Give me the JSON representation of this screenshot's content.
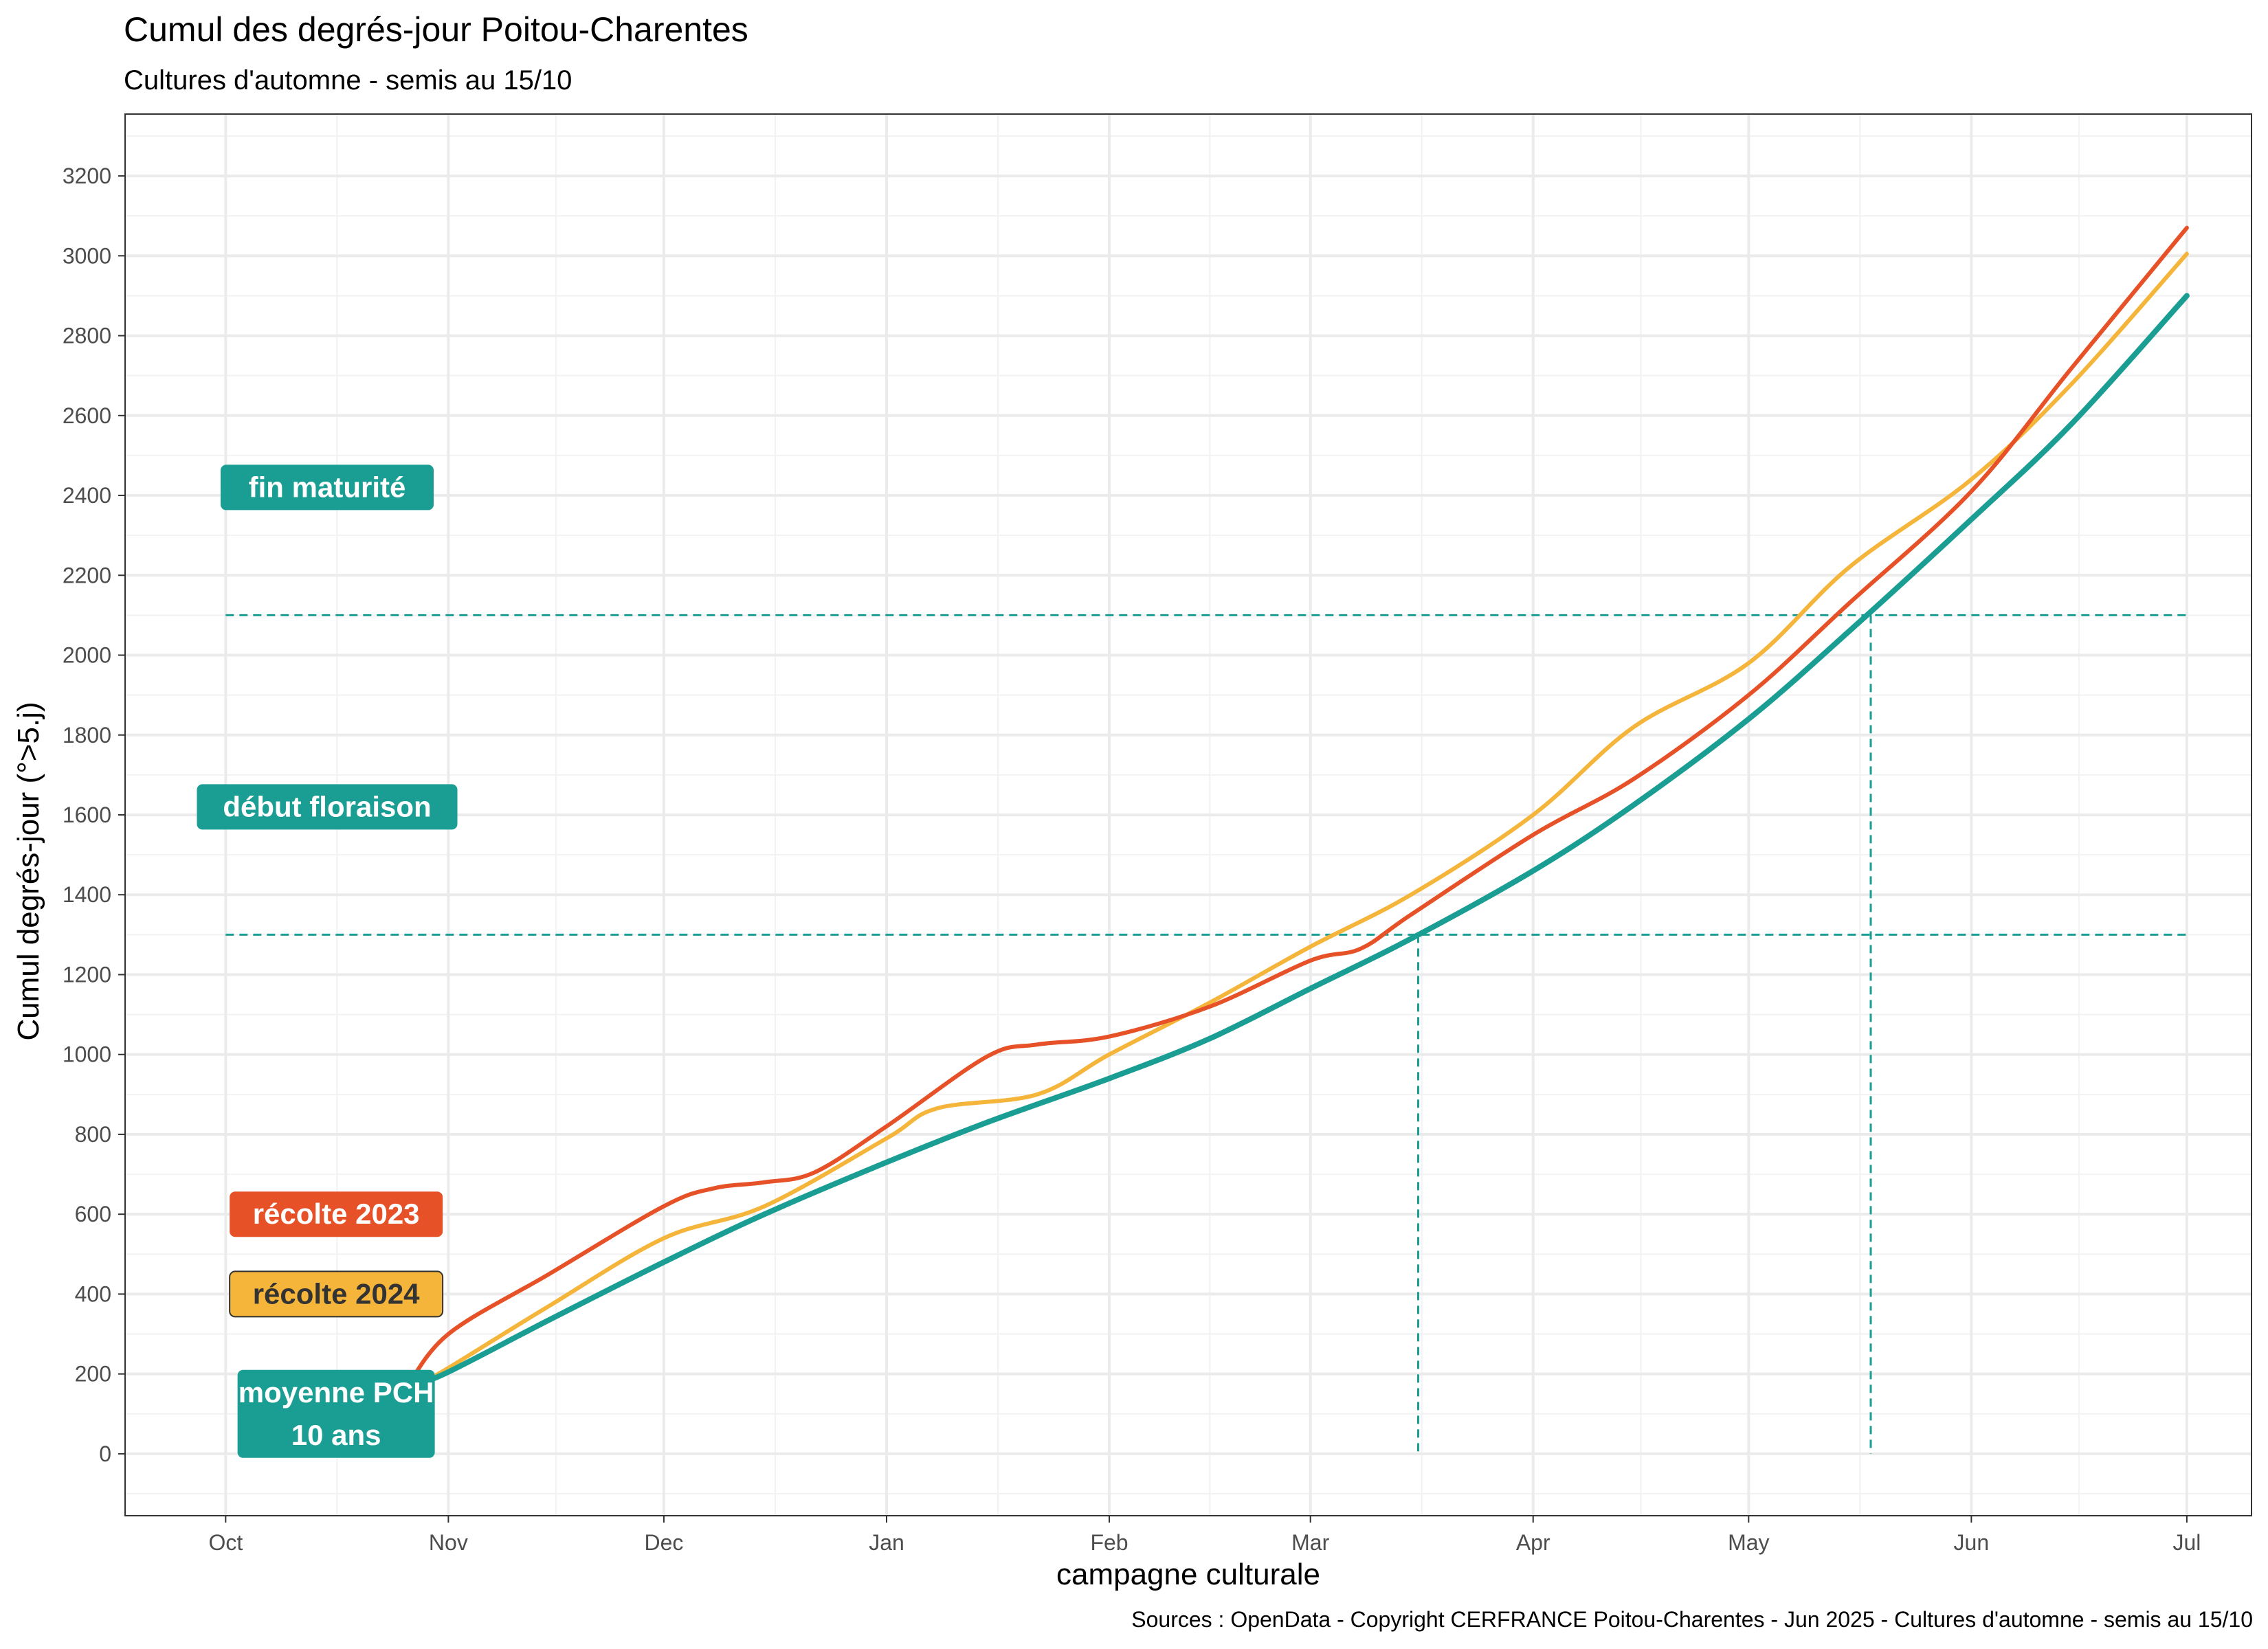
{
  "title": "Cumul des degrés-jour Poitou-Charentes",
  "subtitle": "Cultures d'automne - semis au 15/10",
  "caption": "Sources : OpenData - Copyright CERFRANCE Poitou-Charentes - Jun 2025 - Cultures d'automne - semis au 15/10",
  "colors": {
    "moyenne": "#1a9e94",
    "recolte2023": "#e65128",
    "recolte2024": "#f4b53a"
  },
  "chart_data": {
    "type": "line",
    "xlabel": "campagne culturale",
    "ylabel": "Cumul degrés-jour (°>5.j)",
    "x_ticks": [
      "Oct",
      "Nov",
      "Dec",
      "Jan",
      "Feb",
      "Mar",
      "Apr",
      "May",
      "Jun",
      "Jul"
    ],
    "y_ticks": [
      0,
      200,
      400,
      600,
      800,
      1000,
      1200,
      1400,
      1600,
      1800,
      2000,
      2200,
      2400,
      2600,
      2800,
      3000,
      3200
    ],
    "xlim": [
      "2024-09-17",
      "2025-07-10"
    ],
    "ylim": [
      -155,
      3355
    ],
    "grid": true,
    "series": [
      {
        "name": "moyenne PCH 10 ans",
        "color": "#1a9e94",
        "points": [
          [
            "2024-10-27",
            170
          ],
          [
            "2024-11-01",
            205
          ],
          [
            "2024-11-15",
            335
          ],
          [
            "2024-12-01",
            480
          ],
          [
            "2024-12-15",
            600
          ],
          [
            "2025-01-01",
            730
          ],
          [
            "2025-01-15",
            830
          ],
          [
            "2025-02-01",
            940
          ],
          [
            "2025-02-15",
            1040
          ],
          [
            "2025-03-01",
            1165
          ],
          [
            "2025-03-15",
            1290
          ],
          [
            "2025-04-01",
            1460
          ],
          [
            "2025-04-15",
            1625
          ],
          [
            "2025-05-01",
            1840
          ],
          [
            "2025-05-15",
            2060
          ],
          [
            "2025-06-01",
            2340
          ],
          [
            "2025-06-15",
            2580
          ],
          [
            "2025-07-01",
            2900
          ]
        ]
      },
      {
        "name": "récolte 2023",
        "color": "#e65128",
        "points": [
          [
            "2024-10-26",
            160
          ],
          [
            "2024-11-01",
            300
          ],
          [
            "2024-11-15",
            450
          ],
          [
            "2024-12-01",
            620
          ],
          [
            "2024-12-08",
            665
          ],
          [
            "2024-12-15",
            680
          ],
          [
            "2024-12-22",
            705
          ],
          [
            "2025-01-01",
            820
          ],
          [
            "2025-01-15",
            995
          ],
          [
            "2025-01-22",
            1025
          ],
          [
            "2025-02-01",
            1045
          ],
          [
            "2025-02-15",
            1120
          ],
          [
            "2025-03-01",
            1235
          ],
          [
            "2025-03-08",
            1265
          ],
          [
            "2025-03-15",
            1350
          ],
          [
            "2025-04-01",
            1550
          ],
          [
            "2025-04-15",
            1690
          ],
          [
            "2025-05-01",
            1900
          ],
          [
            "2025-05-15",
            2130
          ],
          [
            "2025-06-01",
            2410
          ],
          [
            "2025-06-15",
            2720
          ],
          [
            "2025-07-01",
            3070
          ]
        ]
      },
      {
        "name": "récolte 2024",
        "color": "#f4b53a",
        "points": [
          [
            "2024-10-27",
            165
          ],
          [
            "2024-11-01",
            215
          ],
          [
            "2024-11-15",
            370
          ],
          [
            "2024-12-01",
            540
          ],
          [
            "2024-12-15",
            620
          ],
          [
            "2025-01-01",
            790
          ],
          [
            "2025-01-08",
            865
          ],
          [
            "2025-01-22",
            900
          ],
          [
            "2025-02-01",
            1000
          ],
          [
            "2025-02-15",
            1130
          ],
          [
            "2025-03-01",
            1270
          ],
          [
            "2025-03-15",
            1400
          ],
          [
            "2025-04-01",
            1600
          ],
          [
            "2025-04-15",
            1820
          ],
          [
            "2025-05-01",
            1980
          ],
          [
            "2025-05-15",
            2220
          ],
          [
            "2025-06-01",
            2440
          ],
          [
            "2025-06-15",
            2680
          ],
          [
            "2025-07-01",
            3005
          ]
        ]
      }
    ],
    "thresholds": [
      {
        "label": "fin maturité",
        "y": 2100,
        "x_end": "2025-07-01",
        "x_reached": "2025-05-18",
        "color": "#1a9e94",
        "text_color": "#ffffff"
      },
      {
        "label": "début floraison",
        "y": 1300,
        "x_end": "2025-07-01",
        "x_reached": "2025-03-16",
        "color": "#1a9e94",
        "text_color": "#ffffff"
      }
    ],
    "series_labels": [
      {
        "label": "récolte 2023",
        "x": "2024-10-16",
        "y": 600,
        "fill": "#e65128",
        "text_color": "#ffffff"
      },
      {
        "label": "récolte 2024",
        "x": "2024-10-16",
        "y": 400,
        "fill": "#f4b53a",
        "text_color": "#333333"
      },
      {
        "lines": [
          "moyenne PCH",
          "10 ans"
        ],
        "x": "2024-10-16",
        "y": 100,
        "fill": "#1a9e94",
        "text_color": "#ffffff"
      }
    ]
  }
}
